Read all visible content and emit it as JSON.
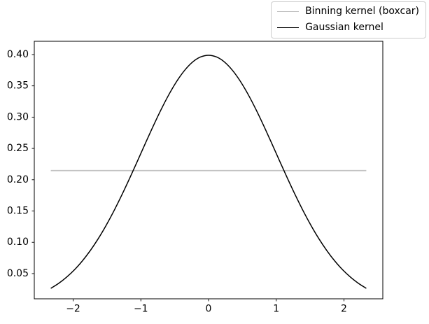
{
  "chart_data": {
    "type": "line",
    "title": "",
    "xlabel": "",
    "ylabel": "",
    "grid": false,
    "legend": {
      "position": "upper right (outside axes)"
    },
    "xlim": [
      -2.574,
      2.574
    ],
    "ylim": [
      0.0097,
      0.4212
    ],
    "xticks": {
      "values": [
        -2,
        -1,
        0,
        1,
        2
      ],
      "labels": [
        "−2",
        "−1",
        "0",
        "1",
        "2"
      ]
    },
    "yticks": {
      "values": [
        0.05,
        0.1,
        0.15,
        0.2,
        0.25,
        0.3,
        0.35,
        0.4
      ],
      "labels": [
        "0.05",
        "0.10",
        "0.15",
        "0.20",
        "0.25",
        "0.30",
        "0.35",
        "0.40"
      ]
    },
    "series": [
      {
        "name": "Binning kernel (boxcar)",
        "color": "#c0c0c0",
        "line_width": 1.8,
        "x": [
          -2.33,
          2.33
        ],
        "y": [
          0.2146,
          0.2146
        ]
      },
      {
        "name": "Gaussian kernel",
        "color": "#000000",
        "line_width": 1.5,
        "x": [
          -2.33,
          -2.2135,
          -2.097,
          -1.9805,
          -1.864,
          -1.7475,
          -1.631,
          -1.5145,
          -1.398,
          -1.2815,
          -1.165,
          -1.0485,
          -0.932,
          -0.8155,
          -0.699,
          -0.5825,
          -0.466,
          -0.3495,
          -0.233,
          -0.1165,
          0,
          0.1165,
          0.233,
          0.3495,
          0.466,
          0.5825,
          0.699,
          0.8155,
          0.932,
          1.0485,
          1.165,
          1.2815,
          1.398,
          1.5145,
          1.631,
          1.7475,
          1.864,
          1.9805,
          2.097,
          2.2135,
          2.33
        ],
        "y": [
          0.0264,
          0.0344,
          0.0443,
          0.0561,
          0.0702,
          0.0867,
          0.1055,
          0.1267,
          0.1501,
          0.1755,
          0.2024,
          0.2302,
          0.2584,
          0.2861,
          0.3125,
          0.3367,
          0.3579,
          0.3753,
          0.3883,
          0.3962,
          0.3989,
          0.3962,
          0.3883,
          0.3753,
          0.3579,
          0.3367,
          0.3125,
          0.2861,
          0.2584,
          0.2302,
          0.2024,
          0.1755,
          0.1501,
          0.1267,
          0.1055,
          0.0867,
          0.0702,
          0.0561,
          0.0443,
          0.0344,
          0.0264
        ]
      }
    ]
  }
}
